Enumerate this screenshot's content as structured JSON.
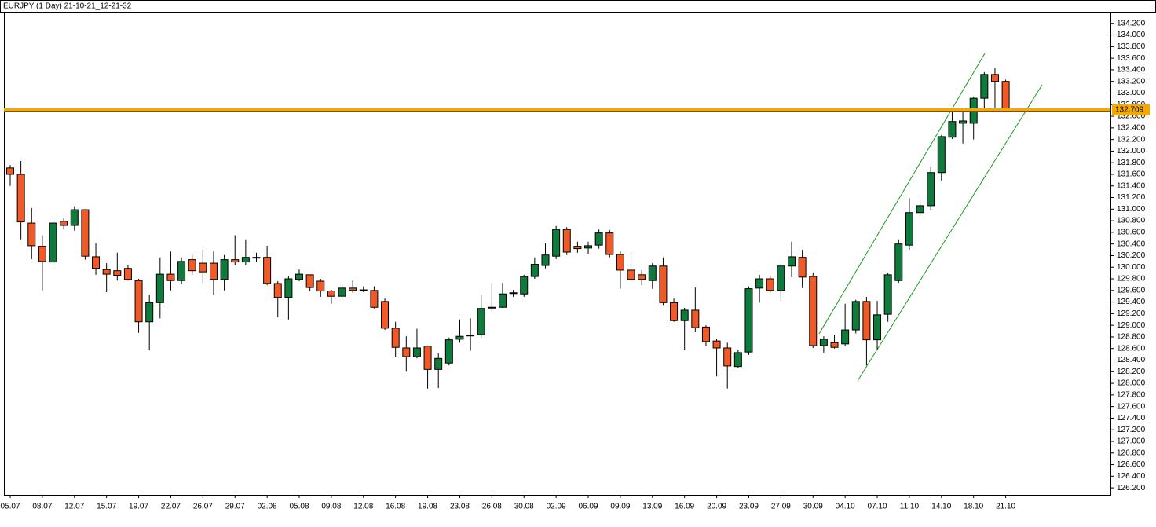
{
  "chart_data": {
    "type": "candlestick",
    "title": "EURJPY (1 Day) 21-10-21_12-21-32",
    "categories": [
      "05.07",
      null,
      null,
      "08.07",
      null,
      null,
      "12.07",
      null,
      null,
      "15.07",
      null,
      null,
      "19.07",
      null,
      null,
      "22.07",
      null,
      null,
      "26.07",
      null,
      null,
      "29.07",
      null,
      null,
      "02.08",
      null,
      null,
      "05.08",
      null,
      null,
      "09.08",
      null,
      null,
      "12.08",
      null,
      null,
      "16.08",
      null,
      null,
      "19.08",
      null,
      null,
      "23.08",
      null,
      null,
      "26.08",
      null,
      null,
      "30.08",
      null,
      null,
      "02.09",
      null,
      null,
      "06.09",
      null,
      null,
      "09.09",
      null,
      null,
      "13.09",
      null,
      null,
      "16.09",
      null,
      null,
      "20.09",
      null,
      null,
      "23.09",
      null,
      null,
      "27.09",
      null,
      null,
      "30.09",
      null,
      null,
      "04.10",
      null,
      null,
      "07.10",
      null,
      null,
      "11.10",
      null,
      null,
      "14.10",
      null,
      null,
      "18.10",
      null,
      null,
      "21.10"
    ],
    "open": [
      131.71,
      131.6,
      130.76,
      130.36,
      130.09,
      130.79,
      130.72,
      130.99,
      130.18,
      129.96,
      129.94,
      129.98,
      129.77,
      129.06,
      129.39,
      129.88,
      129.77,
      130.13,
      130.07,
      130.07,
      129.79,
      130.13,
      130.09,
      130.17,
      130.17,
      129.72,
      129.48,
      129.79,
      129.87,
      129.76,
      129.59,
      129.5,
      129.64,
      129.61,
      129.6,
      129.41,
      128.95,
      128.61,
      128.46,
      128.64,
      128.24,
      128.35,
      128.76,
      128.83,
      128.84,
      129.3,
      129.31,
      129.56,
      129.54,
      129.84,
      130.03,
      130.19,
      130.65,
      130.36,
      130.33,
      130.38,
      130.59,
      130.22,
      129.95,
      129.87,
      129.77,
      130.02,
      129.39,
      129.08,
      129.26,
      128.97,
      128.73,
      128.61,
      128.29,
      128.54,
      129.64,
      129.8,
      129.6,
      130.02,
      130.17,
      129.84,
      128.65,
      128.7,
      128.68,
      128.92,
      129.41,
      128.75,
      129.19,
      129.77,
      130.38,
      130.94,
      131.06,
      131.63,
      132.24,
      132.48,
      132.48,
      132.91,
      133.32,
      133.2
    ],
    "high": [
      131.76,
      131.83,
      131.02,
      130.55,
      130.82,
      130.84,
      131.05,
      131.0,
      130.41,
      130.07,
      130.25,
      130.03,
      129.8,
      129.52,
      130.17,
      130.27,
      130.17,
      130.21,
      130.3,
      130.27,
      130.21,
      130.55,
      130.48,
      130.25,
      130.37,
      129.76,
      129.84,
      129.96,
      129.87,
      129.8,
      129.61,
      129.72,
      129.77,
      129.67,
      129.67,
      129.46,
      129.06,
      128.81,
      128.94,
      128.65,
      128.52,
      128.79,
      129.1,
      129.12,
      129.52,
      129.73,
      129.73,
      129.61,
      129.87,
      130.17,
      130.41,
      130.71,
      130.69,
      130.44,
      130.44,
      130.65,
      130.64,
      130.27,
      130.27,
      129.95,
      130.07,
      130.17,
      129.46,
      129.3,
      129.65,
      129.0,
      128.76,
      128.7,
      128.58,
      129.67,
      129.87,
      129.86,
      130.06,
      130.44,
      130.3,
      129.91,
      128.81,
      128.84,
      129.37,
      129.44,
      129.49,
      129.42,
      129.9,
      130.48,
      131.19,
      131.15,
      131.72,
      132.28,
      132.74,
      132.67,
      132.94,
      133.36,
      133.43,
      133.23
    ],
    "low": [
      131.4,
      130.48,
      130.14,
      129.6,
      130.03,
      130.65,
      130.63,
      130.13,
      129.87,
      129.57,
      129.77,
      129.77,
      128.87,
      128.57,
      129.12,
      129.6,
      129.71,
      129.87,
      129.73,
      129.53,
      129.6,
      130.03,
      130.03,
      130.09,
      129.69,
      129.14,
      129.1,
      129.76,
      129.59,
      129.49,
      129.37,
      129.44,
      129.56,
      129.57,
      129.29,
      128.92,
      128.45,
      128.2,
      128.43,
      127.91,
      127.92,
      128.31,
      128.7,
      128.56,
      128.79,
      129.25,
      129.3,
      129.49,
      129.49,
      129.8,
      129.98,
      130.14,
      130.21,
      130.25,
      130.22,
      130.32,
      130.17,
      129.63,
      129.76,
      129.69,
      129.63,
      129.35,
      129.06,
      128.57,
      128.88,
      128.65,
      128.12,
      127.91,
      128.26,
      128.49,
      129.39,
      129.56,
      129.42,
      129.83,
      129.64,
      128.61,
      128.53,
      128.6,
      128.64,
      128.86,
      128.31,
      128.58,
      129.06,
      129.73,
      130.3,
      130.91,
      130.99,
      131.49,
      132.21,
      132.13,
      132.2,
      132.71,
      132.71,
      132.68
    ],
    "close": [
      131.6,
      130.78,
      130.37,
      130.1,
      130.76,
      130.72,
      130.99,
      130.19,
      129.98,
      129.88,
      129.86,
      129.79,
      129.06,
      129.39,
      129.88,
      129.77,
      130.1,
      129.94,
      129.92,
      129.79,
      130.13,
      130.09,
      130.17,
      130.17,
      129.72,
      129.48,
      129.8,
      129.88,
      129.65,
      129.59,
      129.5,
      129.64,
      129.6,
      129.61,
      129.31,
      128.95,
      128.62,
      128.46,
      128.61,
      128.24,
      128.43,
      128.75,
      128.81,
      128.83,
      129.29,
      129.31,
      129.54,
      129.56,
      129.84,
      130.05,
      130.21,
      130.65,
      130.26,
      130.32,
      130.37,
      130.59,
      130.22,
      129.95,
      129.79,
      129.79,
      130.02,
      129.39,
      129.08,
      129.26,
      128.96,
      128.72,
      128.61,
      128.3,
      128.53,
      129.63,
      129.8,
      129.6,
      130.02,
      130.18,
      129.83,
      128.65,
      128.76,
      128.62,
      128.92,
      129.41,
      128.75,
      129.18,
      129.87,
      130.4,
      130.94,
      131.06,
      131.63,
      132.25,
      132.51,
      132.52,
      132.91,
      133.32,
      133.2,
      132.709
    ],
    "up_color": "#0e7a3c",
    "down_color": "#f05a28",
    "ylim": [
      126.08,
      134.4
    ],
    "yticks": [
      {
        "value": 126.2,
        "label": "126.200"
      },
      {
        "value": 126.4,
        "label": "126.400"
      },
      {
        "value": 126.6,
        "label": "126.600"
      },
      {
        "value": 126.8,
        "label": "126.800"
      },
      {
        "value": 127.0,
        "label": "127.000"
      },
      {
        "value": 127.2,
        "label": "127.200"
      },
      {
        "value": 127.4,
        "label": "127.400"
      },
      {
        "value": 127.6,
        "label": "127.600"
      },
      {
        "value": 127.8,
        "label": "127.800"
      },
      {
        "value": 128.0,
        "label": "128.000"
      },
      {
        "value": 128.2,
        "label": "128.200"
      },
      {
        "value": 128.4,
        "label": "128.400"
      },
      {
        "value": 128.6,
        "label": "128.600"
      },
      {
        "value": 128.8,
        "label": "128.800"
      },
      {
        "value": 129.0,
        "label": "129.000"
      },
      {
        "value": 129.2,
        "label": "129.200"
      },
      {
        "value": 129.4,
        "label": "129.400"
      },
      {
        "value": 129.6,
        "label": "129.600"
      },
      {
        "value": 129.8,
        "label": "129.800"
      },
      {
        "value": 130.0,
        "label": "130.000"
      },
      {
        "value": 130.2,
        "label": "130.200"
      },
      {
        "value": 130.4,
        "label": "130.400"
      },
      {
        "value": 130.6,
        "label": "130.600"
      },
      {
        "value": 130.8,
        "label": "130.800"
      },
      {
        "value": 131.0,
        "label": "131.000"
      },
      {
        "value": 131.2,
        "label": "131.200"
      },
      {
        "value": 131.4,
        "label": "131.400"
      },
      {
        "value": 131.6,
        "label": "131.600"
      },
      {
        "value": 131.8,
        "label": "131.800"
      },
      {
        "value": 132.0,
        "label": "132.000"
      },
      {
        "value": 132.2,
        "label": "132.200"
      },
      {
        "value": 132.4,
        "label": "132.400"
      },
      {
        "value": 132.6,
        "label": "132.600"
      },
      {
        "value": 132.8,
        "label": "132.800"
      },
      {
        "value": 133.0,
        "label": "133.000"
      },
      {
        "value": 133.2,
        "label": "133.200"
      },
      {
        "value": 133.4,
        "label": "133.400"
      },
      {
        "value": 133.6,
        "label": "133.600"
      },
      {
        "value": 133.8,
        "label": "133.800"
      },
      {
        "value": 134.0,
        "label": "134.000"
      },
      {
        "value": 134.2,
        "label": "134.200"
      }
    ],
    "grid": false,
    "level": {
      "value": 132.709,
      "color": "#f5a800"
    }
  }
}
